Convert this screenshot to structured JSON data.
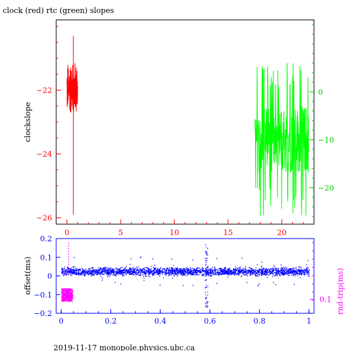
{
  "chart_data": [
    {
      "type": "line",
      "title": "clock (red) rtc (green) slopes",
      "ylabel": "clockslope",
      "x_ticks": [
        0,
        5,
        10,
        15,
        20
      ],
      "xlim": [
        -1.0,
        23.0
      ],
      "y_left_ticks": [
        -22,
        -24,
        -26
      ],
      "ylim_left": [
        -26.2,
        -19.8
      ],
      "y_right_ticks": [
        0,
        -10,
        -20
      ],
      "ylim_right": [
        -27.6,
        15.0
      ],
      "grid": false,
      "series": [
        {
          "name": "clock",
          "color": "#ff0000",
          "axis": "left",
          "x_range": [
            0.0,
            1.0
          ],
          "y_center": -21.95,
          "y_band": [
            -22.8,
            -20.9
          ],
          "spike": {
            "x": 0.6,
            "y_min": -25.9,
            "y_max": -20.3
          }
        },
        {
          "name": "rtc",
          "color": "#00ff00",
          "axis": "right",
          "x_range": [
            17.5,
            22.5
          ],
          "y_center": -10,
          "y_band": [
            -26,
            6
          ]
        }
      ]
    },
    {
      "type": "scatter",
      "ylabel": "offset(ms)",
      "y2label": "rnd-trip(ms)",
      "x_ticks": [
        0,
        0.2,
        0.4,
        0.6,
        0.8,
        1
      ],
      "xlim": [
        -0.02,
        1.02
      ],
      "y_ticks": [
        0.2,
        0.1,
        0,
        -0.1,
        -0.2
      ],
      "ylim": [
        -0.2,
        0.2
      ],
      "y2_tick": 0.1,
      "series": [
        {
          "name": "offset",
          "color": "#0000ff",
          "x_range": [
            0,
            1
          ],
          "y_center": 0.025,
          "y_spread": 0.02,
          "dip": {
            "x": 0.585,
            "y_min": -0.17,
            "y_max": 0.17
          }
        },
        {
          "name": "round trip",
          "color": "#ff00ff",
          "x_range": [
            0.0,
            0.045
          ],
          "y_center": -0.1,
          "y_spread": 0.035
        }
      ]
    }
  ],
  "footer": "2019-11-17  monopole.physics.ubc.ca"
}
